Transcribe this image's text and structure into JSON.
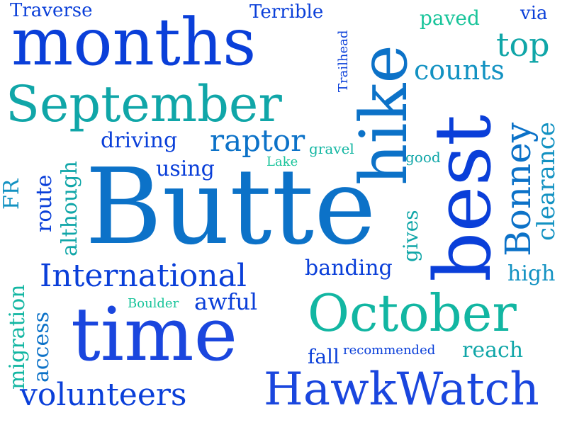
{
  "words": {
    "months": "months",
    "september": "September",
    "butte": "Butte",
    "time": "time",
    "hawkwatch": "HawkWatch",
    "october": "October",
    "international": "International",
    "volunteers": "volunteers",
    "counts": "counts",
    "top": "top",
    "traverse": "Traverse",
    "terrible": "Terrible",
    "paved": "paved",
    "via": "via",
    "raptor": "raptor",
    "driving": "driving",
    "using": "using",
    "gravel": "gravel",
    "good": "good",
    "lake": "Lake",
    "banding": "banding",
    "high": "high",
    "awful": "awful",
    "boulder": "Boulder",
    "recommended": "recommended",
    "reach": "reach",
    "fall": "fall",
    "hike": "hike",
    "best": "best",
    "bonney": "Bonney",
    "clearance": "clearance",
    "trailhead": "Trailhead",
    "route": "route",
    "although": "although",
    "fr": "FR",
    "migration": "migration",
    "access": "access",
    "gives": "gives"
  },
  "colors": {
    "background": "#ffffff",
    "blue": "#0a3fd9",
    "mid_blue": "#0c72c8",
    "teal": "#10a6a8",
    "green": "#18c49a"
  }
}
